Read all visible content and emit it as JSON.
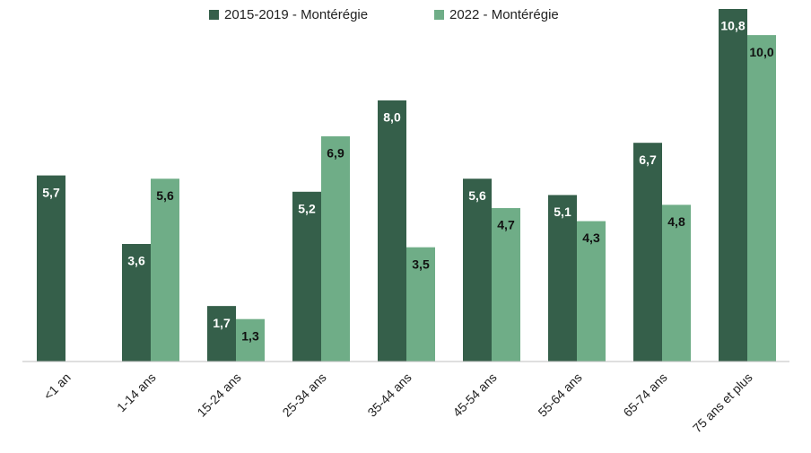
{
  "chart_data": {
    "type": "bar",
    "categories": [
      "<1 an",
      "1-14 ans",
      "15-24 ans",
      "25-34 ans",
      "35-44 ans",
      "45-54 ans",
      "55-64 ans",
      "65-74 ans",
      "75 ans et plus"
    ],
    "series": [
      {
        "name": "2015-2019 - Montérégie",
        "color": "#355f4a",
        "label_color": "#ffffff",
        "values": [
          5.7,
          3.6,
          1.7,
          5.2,
          8.0,
          5.6,
          5.1,
          6.7,
          10.8
        ],
        "value_labels": [
          "5,7",
          "3,6",
          "1,7",
          "5,2",
          "8,0",
          "5,6",
          "5,1",
          "6,7",
          "10,8"
        ]
      },
      {
        "name": "2022 - Montérégie",
        "color": "#6fad87",
        "label_color": "#111111",
        "values": [
          null,
          5.6,
          1.3,
          6.9,
          3.5,
          4.7,
          4.3,
          4.8,
          10.0
        ],
        "value_labels": [
          null,
          "5,6",
          "1,3",
          "6,9",
          "3,5",
          "4,7",
          "4,3",
          "4,8",
          "10,0"
        ]
      }
    ],
    "ylim": [
      0,
      10.8
    ],
    "legend": "top"
  }
}
